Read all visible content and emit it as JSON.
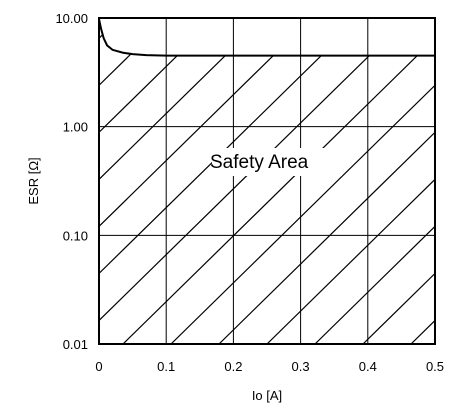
{
  "chart_data": {
    "type": "area",
    "xlabel": "Io [A]",
    "ylabel": "ESR [Ω]",
    "xlim": [
      0,
      0.5
    ],
    "ylim": [
      0.01,
      10
    ],
    "yscale": "log",
    "grid": true,
    "xticks": [
      "0",
      "0.1",
      "0.2",
      "0.3",
      "0.4",
      "0.5"
    ],
    "yticks": [
      "10.00",
      "1.00",
      "0.10",
      "0.01"
    ],
    "boundary_curve": {
      "x": [
        0,
        0.003,
        0.007,
        0.012,
        0.02,
        0.035,
        0.05,
        0.07,
        0.1,
        0.2,
        0.3,
        0.4,
        0.5
      ],
      "y": [
        9.8,
        8.0,
        6.5,
        5.6,
        5.1,
        4.8,
        4.65,
        4.55,
        4.5,
        4.5,
        4.5,
        4.5,
        4.5
      ]
    },
    "region_fill": "hatched",
    "annotation": "Safety Area"
  }
}
